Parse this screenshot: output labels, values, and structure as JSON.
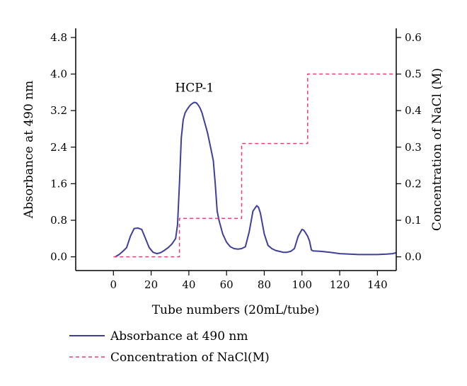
{
  "chart_data": {
    "type": "line",
    "xlabel": "Tube numbers (20mL/tube)",
    "ylabel": "Absorbance at 490 nm",
    "y2label": "Concentration of NaCl (M)",
    "xlim": [
      -20,
      150
    ],
    "ylim": [
      -0.3,
      5.0
    ],
    "y2lim": [
      -0.0375,
      0.625
    ],
    "xticks": [
      0,
      20,
      40,
      60,
      80,
      100,
      120,
      140
    ],
    "xtick_labels": [
      "0",
      "20",
      "40",
      "60",
      "80",
      "100",
      "120",
      "140"
    ],
    "yticks": [
      0.0,
      0.8,
      1.6,
      2.4,
      3.2,
      4.0,
      4.8
    ],
    "ytick_labels": [
      "0.0",
      "0.8",
      "1.6",
      "2.4",
      "3.2",
      "4.0",
      "4.8"
    ],
    "y2ticks": [
      0.0,
      0.1,
      0.2,
      0.3,
      0.4,
      0.5,
      0.6
    ],
    "y2tick_labels": [
      "0.0",
      "0.1",
      "0.2",
      "0.3",
      "0.4",
      "0.5",
      "0.6"
    ],
    "annotations": [
      {
        "text": "HCP-1",
        "x": 43,
        "y": 3.55
      }
    ],
    "legend": {
      "placement": "bottom"
    },
    "series": [
      {
        "name": "Absorbance at 490 nm",
        "axis": "left",
        "color": "#3f3f9a",
        "style": "solid",
        "x": [
          1,
          3,
          5,
          7,
          9,
          11,
          13,
          15,
          17,
          19,
          21,
          23,
          25,
          27,
          29,
          31,
          33,
          34,
          35,
          36,
          37,
          38,
          39,
          40,
          41,
          42,
          43,
          44,
          45,
          46,
          47,
          48,
          49,
          50,
          51,
          52,
          53,
          54,
          55,
          56,
          58,
          60,
          62,
          64,
          66,
          68,
          70,
          72,
          74,
          76,
          77,
          78,
          80,
          82,
          84,
          86,
          88,
          90,
          92,
          94,
          96,
          98,
          100,
          101,
          102,
          103,
          104,
          105,
          106,
          110,
          115,
          120,
          125,
          130,
          135,
          140,
          145,
          148,
          150
        ],
        "values": [
          0.0,
          0.05,
          0.12,
          0.2,
          0.45,
          0.62,
          0.63,
          0.6,
          0.4,
          0.2,
          0.1,
          0.07,
          0.09,
          0.14,
          0.2,
          0.28,
          0.4,
          0.7,
          1.6,
          2.6,
          3.0,
          3.15,
          3.22,
          3.28,
          3.33,
          3.36,
          3.38,
          3.37,
          3.32,
          3.25,
          3.15,
          3.0,
          2.85,
          2.7,
          2.5,
          2.3,
          2.1,
          1.6,
          1.0,
          0.8,
          0.5,
          0.32,
          0.22,
          0.18,
          0.17,
          0.18,
          0.22,
          0.55,
          1.0,
          1.12,
          1.08,
          0.95,
          0.5,
          0.25,
          0.18,
          0.14,
          0.12,
          0.1,
          0.1,
          0.12,
          0.18,
          0.45,
          0.6,
          0.58,
          0.52,
          0.45,
          0.35,
          0.15,
          0.13,
          0.12,
          0.1,
          0.07,
          0.06,
          0.05,
          0.05,
          0.05,
          0.06,
          0.07,
          0.09
        ]
      },
      {
        "name": "Concentration of NaCl(M)",
        "axis": "right",
        "color": "#e0407a",
        "style": "dashed",
        "x": [
          0,
          35,
          35,
          68,
          68,
          103,
          103,
          150
        ],
        "values": [
          0.0,
          0.0,
          0.105,
          0.105,
          0.31,
          0.31,
          0.5,
          0.5
        ]
      }
    ]
  }
}
